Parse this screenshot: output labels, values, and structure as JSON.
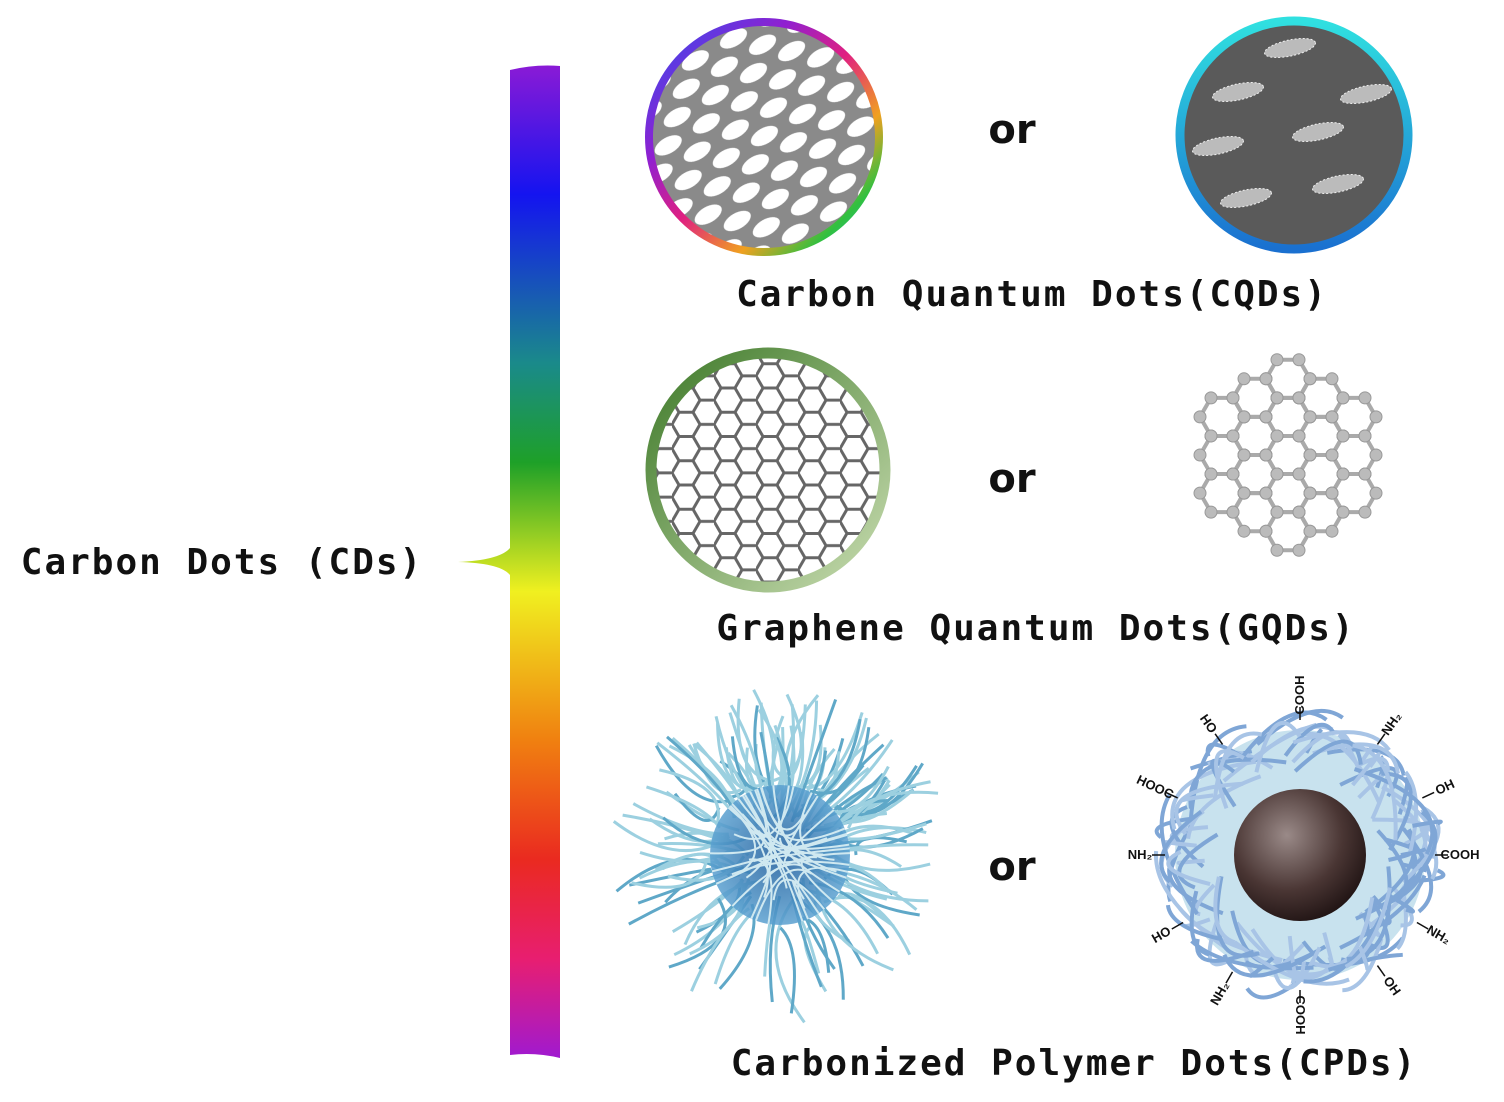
{
  "root": {
    "label": "Carbon Dots (CDs)"
  },
  "types": [
    {
      "label": "Carbon Quantum Dots(CQDs)",
      "connector": "or"
    },
    {
      "label": "Graphene Quantum Dots(GQDs)",
      "connector": "or"
    },
    {
      "label": "Carbonized Polymer Dots(CPDs)",
      "connector": "or"
    }
  ],
  "functional_groups": [
    "COOH",
    "NH₂",
    "OH",
    "COOH",
    "NH₂",
    "OH",
    "COOH",
    "NH₂",
    "HO",
    "NH₂",
    "HOOC",
    "HO"
  ]
}
